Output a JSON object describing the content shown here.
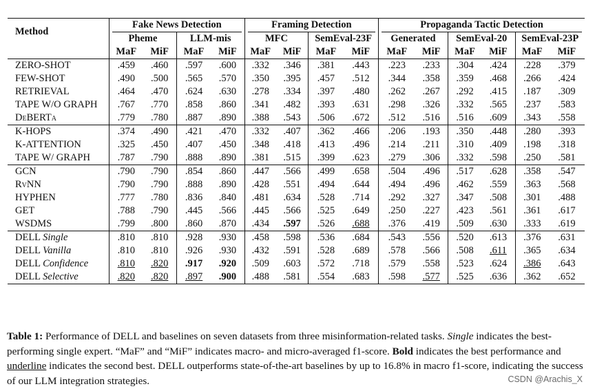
{
  "table": {
    "header": {
      "method": "Method",
      "tasks": [
        "Fake News Detection",
        "Framing Detection",
        "Propaganda Tactic Detection"
      ],
      "datasets": [
        "Pheme",
        "LLM-mis",
        "MFC",
        "SemEval-23F",
        "Generated",
        "SemEval-20",
        "SemEval-23P"
      ],
      "metrics": [
        "MaF",
        "MiF"
      ]
    },
    "groups": [
      [
        {
          "method": "ZERO-SHOT",
          "style": "sc",
          "vals": [
            ".459",
            ".460",
            ".597",
            ".600",
            ".332",
            ".346",
            ".381",
            ".443",
            ".223",
            ".233",
            ".304",
            ".424",
            ".228",
            ".379"
          ]
        },
        {
          "method": "FEW-SHOT",
          "style": "sc",
          "vals": [
            ".490",
            ".500",
            ".565",
            ".570",
            ".350",
            ".395",
            ".457",
            ".512",
            ".344",
            ".358",
            ".359",
            ".468",
            ".266",
            ".424"
          ]
        },
        {
          "method": "RETRIEVAL",
          "style": "sc",
          "vals": [
            ".464",
            ".470",
            ".624",
            ".630",
            ".278",
            ".334",
            ".397",
            ".480",
            ".262",
            ".267",
            ".292",
            ".415",
            ".187",
            ".309"
          ]
        },
        {
          "method": "TAPE W/O GRAPH",
          "style": "sc",
          "vals": [
            ".767",
            ".770",
            ".858",
            ".860",
            ".341",
            ".482",
            ".393",
            ".631",
            ".298",
            ".326",
            ".332",
            ".565",
            ".237",
            ".583"
          ]
        },
        {
          "method": "DeBERTa",
          "style": "sc",
          "vals": [
            ".779",
            ".780",
            ".887",
            ".890",
            ".388",
            ".543",
            ".506",
            ".672",
            ".512",
            ".516",
            ".516",
            ".609",
            ".343",
            ".558"
          ]
        }
      ],
      [
        {
          "method": "K-HOPS",
          "style": "sc",
          "vals": [
            ".374",
            ".490",
            ".421",
            ".470",
            ".332",
            ".407",
            ".362",
            ".466",
            ".206",
            ".193",
            ".350",
            ".448",
            ".280",
            ".393"
          ]
        },
        {
          "method": "K-ATTENTION",
          "style": "sc",
          "vals": [
            ".325",
            ".450",
            ".407",
            ".450",
            ".348",
            ".418",
            ".413",
            ".496",
            ".214",
            ".211",
            ".310",
            ".409",
            ".198",
            ".318"
          ]
        },
        {
          "method": "TAPE W/ GRAPH",
          "style": "sc",
          "vals": [
            ".787",
            ".790",
            ".888",
            ".890",
            ".381",
            ".515",
            ".399",
            ".623",
            ".279",
            ".306",
            ".332",
            ".598",
            ".250",
            ".581"
          ]
        }
      ],
      [
        {
          "method": "GCN",
          "style": "sc",
          "vals": [
            ".790",
            ".790",
            ".854",
            ".860",
            ".447",
            ".566",
            ".499",
            ".658",
            ".504",
            ".496",
            ".517",
            ".628",
            ".358",
            ".547"
          ]
        },
        {
          "method": "RvNN",
          "style": "sc",
          "vals": [
            ".790",
            ".790",
            ".888",
            ".890",
            ".428",
            ".551",
            ".494",
            ".644",
            ".494",
            ".496",
            ".462",
            ".559",
            ".363",
            ".568"
          ]
        },
        {
          "method": "HYPHEN",
          "style": "sc",
          "vals": [
            ".777",
            ".780",
            ".836",
            ".840",
            ".481",
            ".634",
            ".528",
            ".714",
            ".292",
            ".327",
            ".347",
            ".508",
            ".301",
            ".488"
          ]
        },
        {
          "method": "GET",
          "style": "sc",
          "vals": [
            ".788",
            ".790",
            ".445",
            ".566",
            ".445",
            ".566",
            ".525",
            ".649",
            ".250",
            ".227",
            ".423",
            ".561",
            ".361",
            ".617"
          ]
        },
        {
          "method": "WSDMS",
          "style": "sc",
          "vals": [
            ".799",
            ".800",
            ".860",
            ".870",
            ".434",
            ".597",
            ".526",
            ".688",
            ".376",
            ".419",
            ".509",
            ".630",
            ".333",
            ".619"
          ]
        }
      ],
      [
        {
          "method": "DELL",
          "variant": "Single",
          "vals": [
            ".810",
            ".810",
            ".928",
            ".930",
            ".458",
            ".598",
            ".536",
            ".684",
            ".543",
            ".556",
            ".520",
            ".613",
            ".376",
            ".631"
          ]
        },
        {
          "method": "DELL",
          "variant": "Vanilla",
          "vals": [
            ".810",
            ".810",
            ".926",
            ".930",
            ".432",
            ".591",
            ".528",
            ".689",
            ".578",
            ".566",
            ".508",
            ".611",
            ".365",
            ".634"
          ]
        },
        {
          "method": "DELL",
          "variant": "Confidence",
          "vals": [
            ".810",
            ".820",
            ".917",
            ".920",
            ".509",
            ".603",
            ".572",
            ".718",
            ".579",
            ".558",
            ".523",
            ".624",
            ".386",
            ".643"
          ]
        },
        {
          "method": "DELL",
          "variant": "Selective",
          "vals": [
            ".820",
            ".820",
            ".897",
            ".900",
            ".488",
            ".581",
            ".554",
            ".683",
            ".598",
            ".577",
            ".525",
            ".636",
            ".362",
            ".652"
          ]
        }
      ]
    ]
  },
  "caption": {
    "label": "Table 1:",
    "t1": " Performance of DELL and baselines on seven datasets from three misinformation-related tasks. ",
    "single": "Single",
    "t2": " indicates the best-performing single expert. “MaF” and “MiF” indicates macro- and micro-averaged f1-score. ",
    "bold": "Bold",
    "t3": " indicates the best performance and ",
    "underline": "underline",
    "t4": " indicates the second best. DELL outperforms state-of-the-art baselines by up to 16.8% in macro f1-score, indicating the success of our LLM integration strategies."
  },
  "watermark": "CSDN @Arachis_X"
}
